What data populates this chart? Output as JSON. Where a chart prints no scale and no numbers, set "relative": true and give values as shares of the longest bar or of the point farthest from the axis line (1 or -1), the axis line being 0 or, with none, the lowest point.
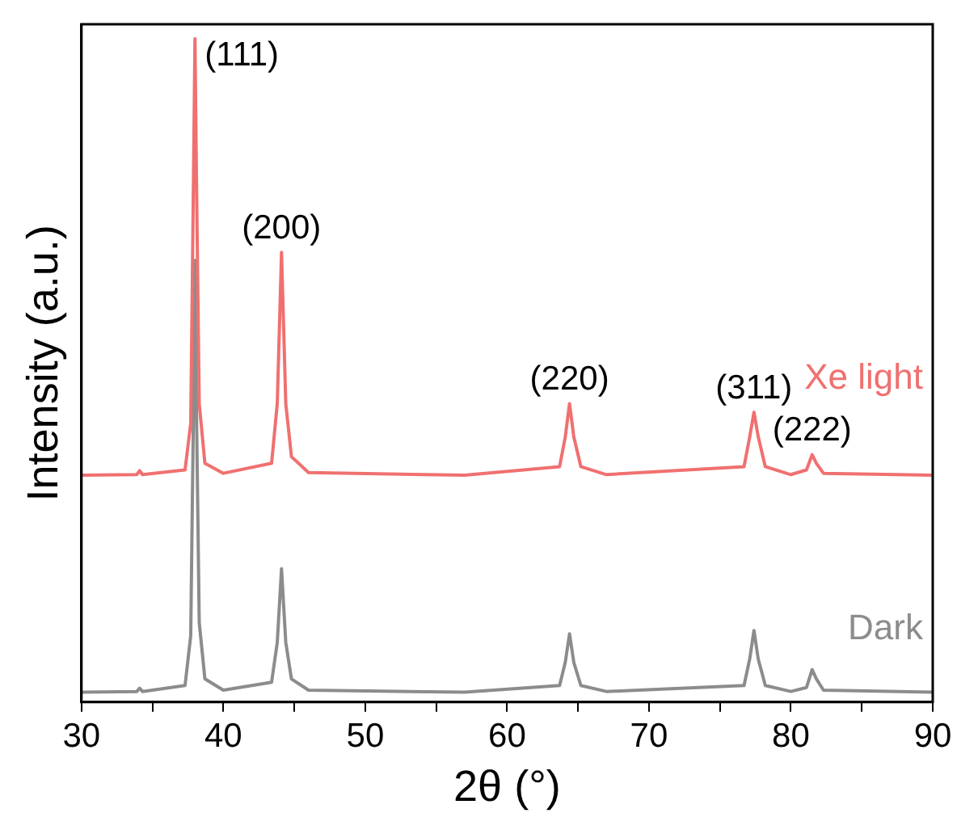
{
  "chart_data": {
    "type": "line",
    "relative": true,
    "xlabel": "2θ (°)",
    "ylabel": "Intensity (a.u.)",
    "xlim": [
      30,
      90
    ],
    "xticks": [
      30,
      {
        "value": 35,
        "label": null
      },
      40,
      {
        "value": 45,
        "label": null
      },
      50,
      {
        "value": 55,
        "label": null
      },
      60,
      {
        "value": 65,
        "label": null
      },
      70,
      {
        "value": 75,
        "label": null
      },
      80,
      {
        "value": 85,
        "label": null
      },
      90
    ],
    "tick_labels": "x",
    "grid": false,
    "legend": false,
    "marker": "none",
    "line_style": "solid",
    "x": [
      30,
      33.9,
      34.1,
      34.3,
      37.3,
      37.7,
      37.9,
      38.0,
      38.1,
      38.3,
      38.7,
      40,
      43.4,
      43.8,
      44.1,
      44.4,
      44.8,
      46,
      57,
      63.7,
      64.1,
      64.4,
      64.7,
      65.2,
      67,
      76.7,
      77.1,
      77.4,
      77.7,
      78.2,
      80,
      81.1,
      81.5,
      81.8,
      82.3,
      90
    ],
    "series": [
      {
        "name": "Xe light",
        "color": "#f07070",
        "values": [
          0.342,
          0.343,
          0.349,
          0.343,
          0.35,
          0.42,
          0.8,
          1.0,
          0.8,
          0.45,
          0.36,
          0.345,
          0.36,
          0.45,
          0.678,
          0.45,
          0.37,
          0.346,
          0.342,
          0.355,
          0.4,
          0.45,
          0.4,
          0.355,
          0.343,
          0.355,
          0.4,
          0.437,
          0.4,
          0.355,
          0.343,
          0.35,
          0.373,
          0.36,
          0.345,
          0.342
        ]
      },
      {
        "name": "Dark",
        "color": "#8c8c8c",
        "values": [
          0.015,
          0.016,
          0.021,
          0.016,
          0.025,
          0.1,
          0.45,
          0.666,
          0.45,
          0.12,
          0.035,
          0.018,
          0.03,
          0.09,
          0.201,
          0.09,
          0.035,
          0.018,
          0.015,
          0.025,
          0.06,
          0.103,
          0.06,
          0.025,
          0.016,
          0.025,
          0.065,
          0.108,
          0.065,
          0.025,
          0.016,
          0.022,
          0.049,
          0.035,
          0.018,
          0.015
        ]
      }
    ],
    "annotations": [
      {
        "text": "(111)",
        "x": 38.0,
        "y": 1.0
      },
      {
        "text": "(200)",
        "x": 44.1,
        "y": 0.678
      },
      {
        "text": "(220)",
        "x": 64.4,
        "y": 0.45
      },
      {
        "text": "(311)",
        "x": 77.4,
        "y": 0.437
      },
      {
        "text": "(222)",
        "x": 81.5,
        "y": 0.373
      }
    ]
  }
}
